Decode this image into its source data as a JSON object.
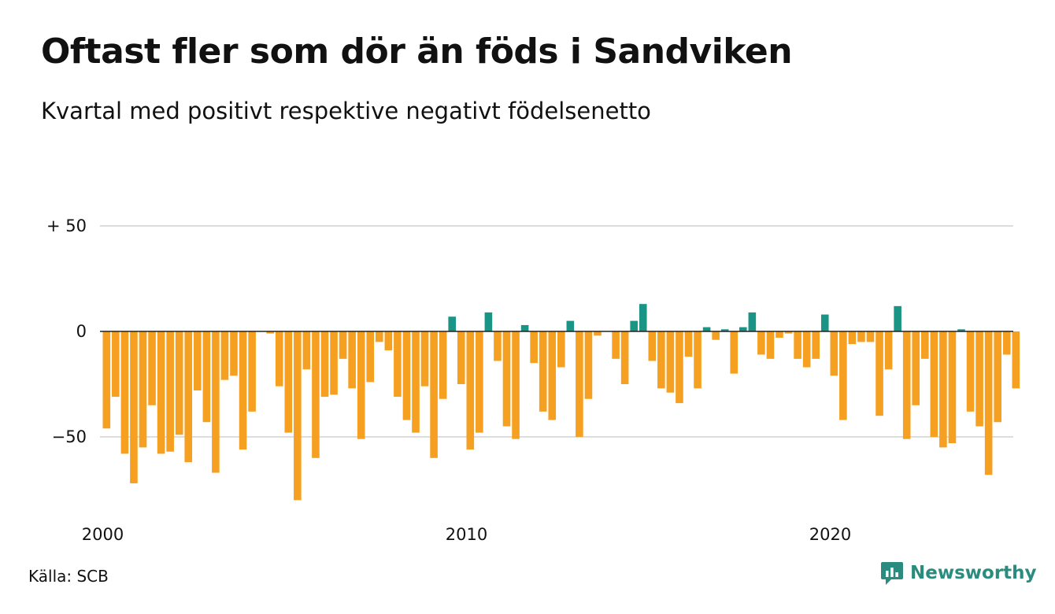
{
  "header": {
    "title": "Oftast fler som dör än föds i Sandviken",
    "subtitle": "Kvartal med positivt respektive negativt födelsenetto"
  },
  "footer": {
    "source": "Källa: SCB",
    "brand": "Newsworthy"
  },
  "colors": {
    "positive": "#1a9484",
    "negative": "#f5a020",
    "grid": "#dddddd",
    "zero_line": "#222222",
    "brand": "#2a8c7f"
  },
  "icons": {
    "brand_logo": "newsworthy-logo-icon"
  },
  "chart_data": {
    "type": "bar",
    "title": "Oftast fler som dör än föds i Sandviken",
    "subtitle": "Kvartal med positivt respektive negativt födelsenetto",
    "xlabel": "",
    "ylabel": "",
    "x_tick_labels": [
      "2000",
      "2010",
      "2020"
    ],
    "y_tick_labels": [
      {
        "value": 50,
        "label": "+ 50"
      },
      {
        "value": 0,
        "label": "0"
      },
      {
        "value": -50,
        "label": "−50"
      }
    ],
    "ylim": [
      -82,
      50
    ],
    "grid": true,
    "legend": "none",
    "start_period": "2000 Q1",
    "values": [
      -46,
      -31,
      -58,
      -72,
      -55,
      -35,
      -58,
      -57,
      -49,
      -62,
      -28,
      -43,
      -67,
      -23,
      -21,
      -56,
      -38,
      0,
      -1,
      -26,
      -48,
      -80,
      -18,
      -60,
      -31,
      -30,
      -13,
      -27,
      -51,
      -24,
      -5,
      -9,
      -31,
      -42,
      -48,
      -26,
      -60,
      -32,
      7,
      -25,
      -56,
      -48,
      9,
      -14,
      -45,
      -51,
      3,
      -15,
      -38,
      -42,
      -17,
      5,
      -50,
      -32,
      -2,
      0,
      -13,
      -25,
      5,
      13,
      -14,
      -27,
      -29,
      -34,
      -12,
      -27,
      2,
      -4,
      1,
      -20,
      2,
      9,
      -11,
      -13,
      -3,
      -1,
      -13,
      -17,
      -13,
      8,
      -21,
      -42,
      -6,
      -5,
      -5,
      -40,
      -18,
      12,
      -51,
      -35,
      -13,
      -50,
      -55,
      -53,
      1,
      -38,
      -45,
      -68,
      -43,
      -11,
      -27
    ]
  }
}
